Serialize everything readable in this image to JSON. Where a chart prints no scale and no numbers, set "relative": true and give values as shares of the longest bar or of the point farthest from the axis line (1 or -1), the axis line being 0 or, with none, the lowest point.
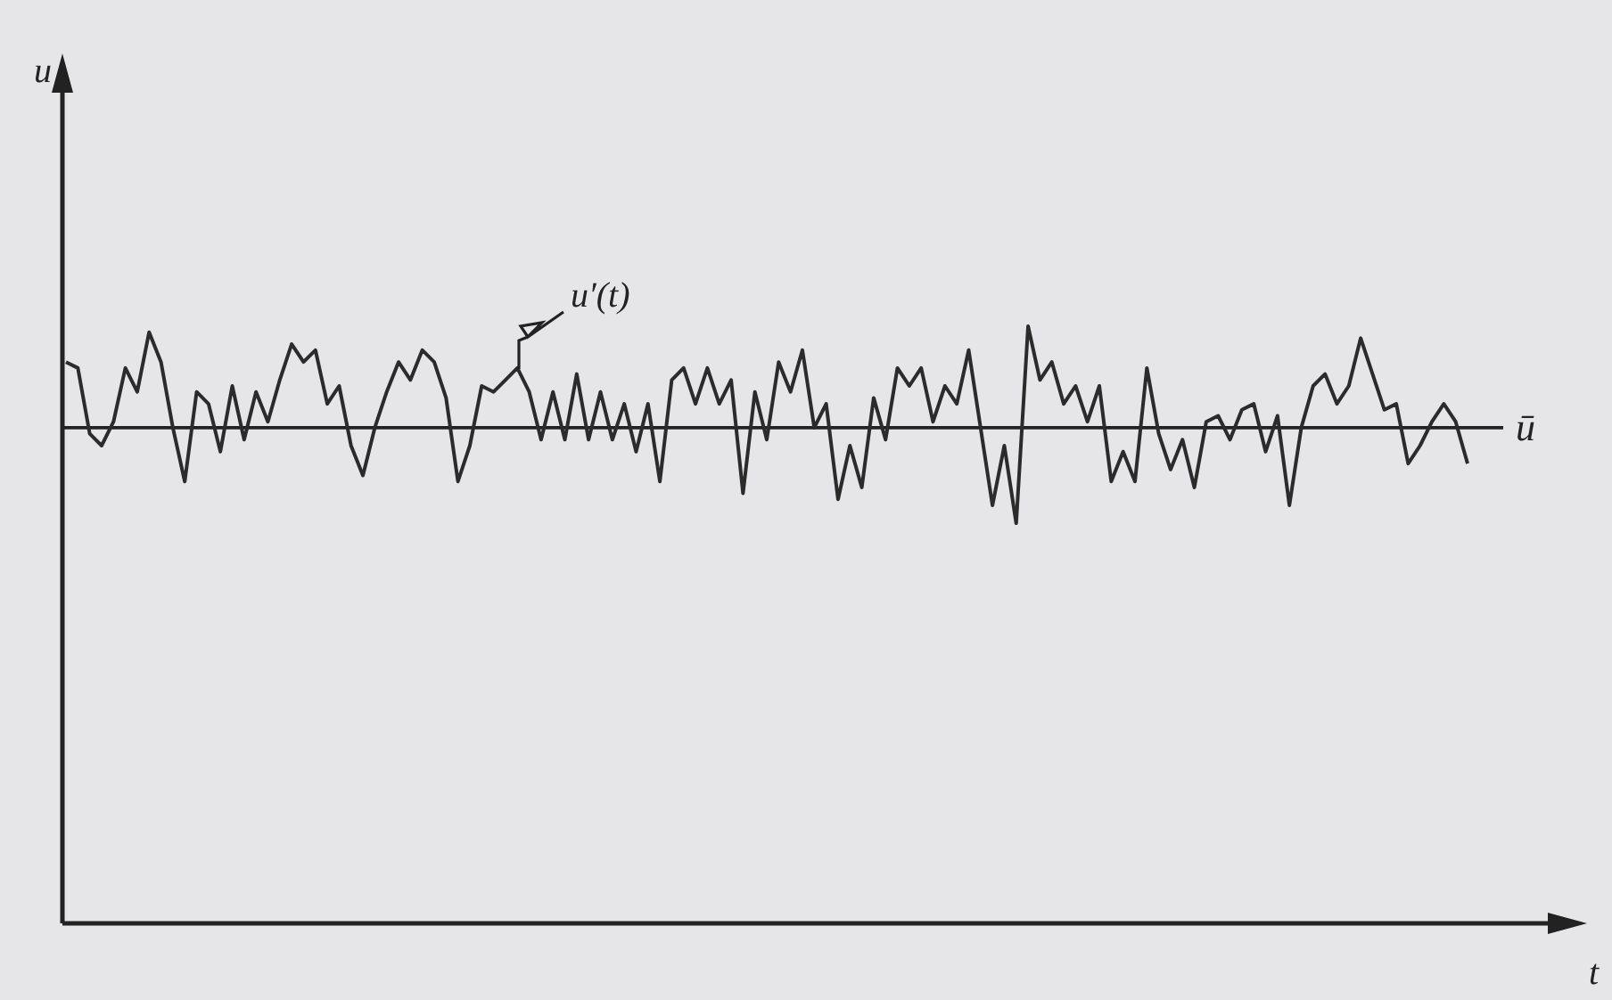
{
  "chart_data": {
    "type": "line",
    "relative": true,
    "xlabel": "t",
    "color": "#2b2b2b",
    "categories": [
      null,
      null,
      null,
      null,
      null,
      null,
      null,
      null,
      null,
      null,
      null,
      null,
      null,
      null,
      null,
      null,
      null,
      null,
      null,
      null,
      null,
      null,
      null,
      null,
      null,
      null,
      null,
      null,
      null,
      null,
      null,
      null,
      null,
      null,
      null,
      null,
      null,
      null,
      null,
      null,
      null,
      null,
      null,
      null,
      null,
      null,
      null,
      null,
      null,
      null,
      null,
      null,
      null,
      null,
      null,
      null,
      null,
      null,
      null,
      null,
      null,
      null,
      null,
      null,
      null,
      null,
      null,
      null,
      null,
      null,
      null,
      null,
      null,
      null,
      null,
      null,
      null,
      null,
      null,
      null,
      null,
      null,
      null,
      null,
      null,
      null,
      null,
      null,
      null,
      null,
      null,
      null,
      null,
      null,
      null,
      null,
      null,
      null,
      null,
      null,
      null,
      null,
      null,
      null,
      null,
      null,
      null,
      null,
      null,
      null,
      null,
      null,
      null,
      null,
      null,
      null,
      null,
      null,
      null
    ],
    "values": [
      0.94,
      0.93,
      0.82,
      0.8,
      0.84,
      0.93,
      0.89,
      0.99,
      0.94,
      0.83,
      0.74,
      0.89,
      0.87,
      0.79,
      0.9,
      0.81,
      0.89,
      0.84,
      0.91,
      0.97,
      0.94,
      0.96,
      0.87,
      0.9,
      0.8,
      0.75,
      0.83,
      0.89,
      0.94,
      0.91,
      0.96,
      0.94,
      0.88,
      0.74,
      0.8,
      0.9,
      0.89,
      0.91,
      0.93,
      0.89,
      0.81,
      0.89,
      0.81,
      0.92,
      0.81,
      0.89,
      0.81,
      0.87,
      0.79,
      0.87,
      0.74,
      0.91,
      0.93,
      0.87,
      0.93,
      0.87,
      0.91,
      0.72,
      0.89,
      0.81,
      0.94,
      0.89,
      0.96,
      0.83,
      0.87,
      0.71,
      0.8,
      0.73,
      0.88,
      0.81,
      0.93,
      0.9,
      0.93,
      0.84,
      0.9,
      0.87,
      0.96,
      0.83,
      0.7,
      0.8,
      0.67,
      1,
      0.91,
      0.94,
      0.87,
      0.9,
      0.84,
      0.9,
      0.74,
      0.79,
      0.74,
      0.93,
      0.82,
      0.76,
      0.81,
      0.73,
      0.84,
      0.85,
      0.81,
      0.86,
      0.87,
      0.79,
      0.85,
      0.7,
      0.83,
      0.9,
      0.92,
      0.87,
      0.9,
      0.98,
      0.92,
      0.86,
      0.87,
      0.77,
      0.8,
      0.84,
      0.87,
      0.84,
      0.77
    ],
    "ref_lines": [
      {
        "axis": "y",
        "value": 0.83,
        "label": "ū"
      }
    ],
    "annotations": [
      "u′(t)",
      "u"
    ]
  }
}
